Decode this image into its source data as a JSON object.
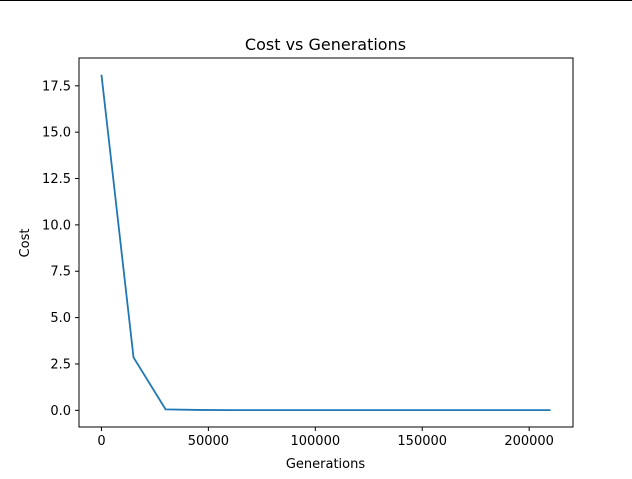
{
  "chart_data": {
    "type": "line",
    "title": "Cost vs Generations",
    "xlabel": "Generations",
    "ylabel": "Cost",
    "xlim": [
      -10500,
      220500
    ],
    "ylim": [
      -0.9,
      19.0
    ],
    "xticks": [
      0,
      50000,
      100000,
      150000,
      200000
    ],
    "xtick_labels": [
      "0",
      "50000",
      "100000",
      "150000",
      "200000"
    ],
    "yticks": [
      0.0,
      2.5,
      5.0,
      7.5,
      10.0,
      12.5,
      15.0,
      17.5
    ],
    "ytick_labels": [
      "0.0",
      "2.5",
      "5.0",
      "7.5",
      "10.0",
      "12.5",
      "15.0",
      "17.5"
    ],
    "grid": false,
    "series": [
      {
        "color": "#1f77b4",
        "x": [
          0,
          15000,
          30000,
          45000,
          60000,
          75000,
          90000,
          105000,
          120000,
          135000,
          150000,
          165000,
          180000,
          195000,
          210000
        ],
        "y": [
          18.1,
          2.85,
          0.05,
          0.02,
          0.01,
          0.01,
          0.01,
          0.01,
          0.01,
          0.01,
          0.01,
          0.01,
          0.01,
          0.01,
          0.01
        ]
      }
    ]
  }
}
